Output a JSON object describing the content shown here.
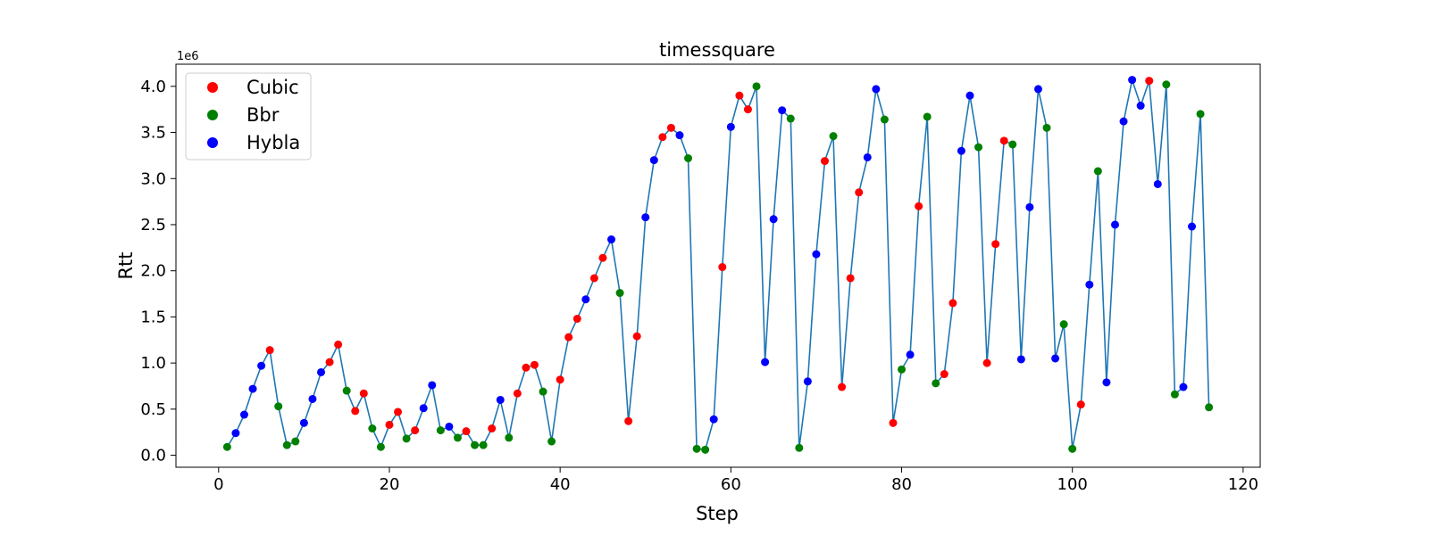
{
  "chart_data": {
    "type": "line",
    "title": "timessquare",
    "xlabel": "Step",
    "ylabel": "Rtt",
    "y_offset_label": "1e6",
    "xlim": [
      -5,
      122
    ],
    "ylim": [
      -0.13,
      4.24
    ],
    "xticks": [
      0,
      20,
      40,
      60,
      80,
      100,
      120
    ],
    "yticks": [
      0.0,
      0.5,
      1.0,
      1.5,
      2.0,
      2.5,
      3.0,
      3.5,
      4.0
    ],
    "xtick_labels": [
      "0",
      "20",
      "40",
      "60",
      "80",
      "100",
      "120"
    ],
    "ytick_labels": [
      "0.0",
      "0.5",
      "1.0",
      "1.5",
      "2.0",
      "2.5",
      "3.0",
      "3.5",
      "4.0"
    ],
    "grid": false,
    "legend_position": "top-left",
    "line_color": "#1f77b4",
    "colors": {
      "Cubic": "#ff0000",
      "Bbr": "#008000",
      "Hybla": "#0000ff"
    },
    "legend": [
      "Cubic",
      "Bbr",
      "Hybla"
    ],
    "x": [
      1,
      2,
      3,
      4,
      5,
      6,
      7,
      8,
      9,
      10,
      11,
      12,
      13,
      14,
      15,
      16,
      17,
      18,
      19,
      20,
      21,
      22,
      23,
      24,
      25,
      26,
      27,
      28,
      29,
      30,
      31,
      32,
      33,
      34,
      35,
      36,
      37,
      38,
      39,
      40,
      41,
      42,
      43,
      44,
      45,
      46,
      47,
      48,
      49,
      50,
      51,
      52,
      53,
      54,
      55,
      56,
      57,
      58,
      59,
      60,
      61,
      62,
      63,
      64,
      65,
      66,
      67,
      68,
      69,
      70,
      71,
      72,
      73,
      74,
      75,
      76,
      77,
      78,
      79,
      80,
      81,
      82,
      83,
      84,
      85,
      86,
      87,
      88,
      89,
      90,
      91,
      92,
      93,
      94,
      95,
      96,
      97,
      98,
      99,
      100,
      101,
      102,
      103,
      104,
      105,
      106,
      107,
      108,
      109,
      110,
      111,
      112,
      113,
      114,
      115,
      116
    ],
    "y": [
      0.09,
      0.24,
      0.44,
      0.72,
      0.97,
      1.14,
      0.53,
      0.11,
      0.15,
      0.35,
      0.61,
      0.9,
      1.01,
      1.2,
      0.7,
      0.48,
      0.67,
      0.29,
      0.09,
      0.33,
      0.47,
      0.18,
      0.27,
      0.51,
      0.76,
      0.27,
      0.31,
      0.19,
      0.26,
      0.11,
      0.11,
      0.29,
      0.6,
      0.19,
      0.67,
      0.95,
      0.98,
      0.69,
      0.15,
      0.82,
      1.28,
      1.48,
      1.69,
      1.92,
      2.14,
      2.34,
      1.76,
      0.37,
      1.29,
      2.58,
      3.2,
      3.45,
      3.55,
      3.47,
      3.22,
      0.07,
      0.06,
      0.39,
      2.04,
      3.56,
      3.9,
      3.75,
      4.0,
      1.01,
      2.56,
      3.74,
      3.65,
      0.08,
      0.8,
      2.18,
      3.19,
      3.46,
      0.74,
      1.92,
      2.85,
      3.23,
      3.97,
      3.64,
      0.35,
      0.93,
      1.09,
      2.7,
      3.67,
      0.78,
      0.88,
      1.65,
      3.3,
      3.9,
      3.34,
      1.0,
      2.29,
      3.41,
      3.37,
      1.04,
      2.69,
      3.97,
      3.55,
      1.05,
      1.42,
      0.07,
      0.55,
      1.85,
      3.08,
      0.79,
      2.5,
      3.62,
      4.07,
      3.79,
      4.06,
      2.94,
      4.02,
      0.66,
      0.74,
      2.48,
      3.7,
      0.52
    ],
    "algo": [
      "Bbr",
      "Hybla",
      "Hybla",
      "Hybla",
      "Hybla",
      "Cubic",
      "Bbr",
      "Bbr",
      "Bbr",
      "Hybla",
      "Hybla",
      "Hybla",
      "Cubic",
      "Cubic",
      "Bbr",
      "Cubic",
      "Cubic",
      "Bbr",
      "Bbr",
      "Cubic",
      "Cubic",
      "Bbr",
      "Cubic",
      "Hybla",
      "Hybla",
      "Bbr",
      "Hybla",
      "Bbr",
      "Cubic",
      "Bbr",
      "Bbr",
      "Cubic",
      "Hybla",
      "Bbr",
      "Cubic",
      "Cubic",
      "Cubic",
      "Bbr",
      "Bbr",
      "Cubic",
      "Cubic",
      "Cubic",
      "Hybla",
      "Cubic",
      "Cubic",
      "Hybla",
      "Bbr",
      "Cubic",
      "Cubic",
      "Hybla",
      "Hybla",
      "Cubic",
      "Cubic",
      "Hybla",
      "Bbr",
      "Bbr",
      "Bbr",
      "Hybla",
      "Cubic",
      "Hybla",
      "Cubic",
      "Cubic",
      "Bbr",
      "Hybla",
      "Hybla",
      "Hybla",
      "Bbr",
      "Bbr",
      "Hybla",
      "Hybla",
      "Cubic",
      "Bbr",
      "Cubic",
      "Cubic",
      "Cubic",
      "Hybla",
      "Hybla",
      "Bbr",
      "Cubic",
      "Bbr",
      "Hybla",
      "Cubic",
      "Bbr",
      "Bbr",
      "Cubic",
      "Cubic",
      "Hybla",
      "Hybla",
      "Bbr",
      "Cubic",
      "Cubic",
      "Cubic",
      "Bbr",
      "Hybla",
      "Hybla",
      "Hybla",
      "Bbr",
      "Hybla",
      "Bbr",
      "Bbr",
      "Cubic",
      "Hybla",
      "Bbr",
      "Hybla",
      "Hybla",
      "Hybla",
      "Hybla",
      "Hybla",
      "Cubic",
      "Hybla",
      "Bbr",
      "Bbr",
      "Hybla",
      "Hybla",
      "Bbr",
      "Bbr"
    ]
  }
}
